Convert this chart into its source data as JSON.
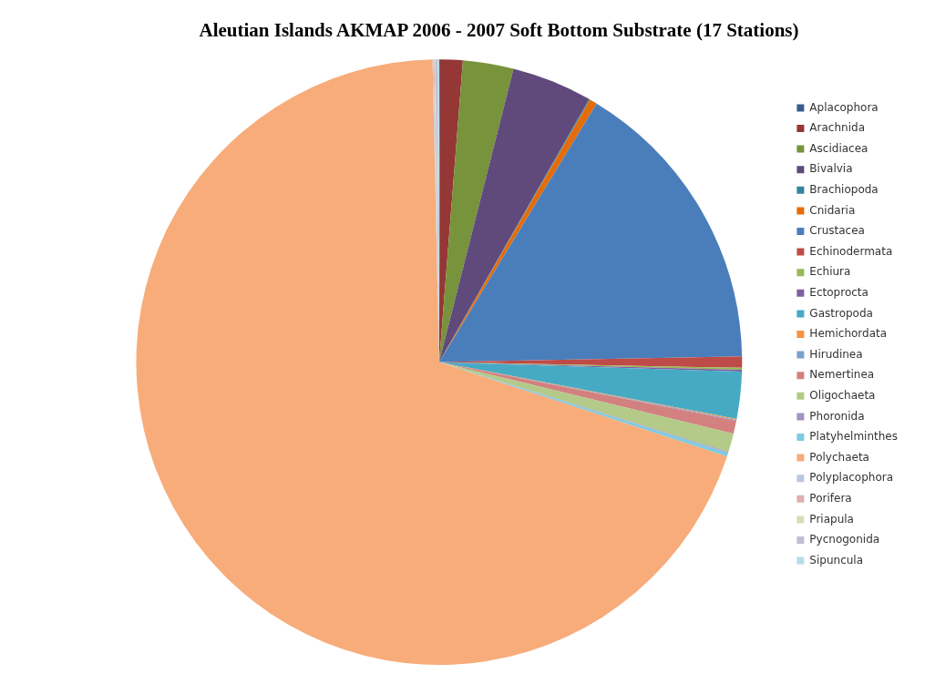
{
  "chart_data": {
    "type": "pie",
    "title": "Aleutian Islands AKMAP 2006 - 2007 Soft Bottom Substrate (17 Stations)",
    "categories": [
      "Aplacophora",
      "Arachnida",
      "Ascidiacea",
      "Bivalvia",
      "Brachiopoda",
      "Cnidaria",
      "Crustacea",
      "Echinodermata",
      "Echiura",
      "Ectoprocta",
      "Gastropoda",
      "Hemichordata",
      "Hirudinea",
      "Nemertinea",
      "Oligochaeta",
      "Phoronida",
      "Platyhelminthes",
      "Polychaeta",
      "Polyplacophora",
      "Porifera",
      "Priapula",
      "Pycnogonida",
      "Sipuncula"
    ],
    "values": [
      0.05,
      1.2,
      2.7,
      4.3,
      0.05,
      0.4,
      16.0,
      0.6,
      0.1,
      0.1,
      2.5,
      0.05,
      0.05,
      0.7,
      1.0,
      0.05,
      0.2,
      69.6,
      0.05,
      0.05,
      0.05,
      0.1,
      0.1
    ],
    "colors": [
      "#385d8a",
      "#953735",
      "#77933c",
      "#604a7b",
      "#31859c",
      "#e46c0a",
      "#4a7ebb",
      "#be4b48",
      "#98b954",
      "#7d60a0",
      "#46aac5",
      "#f69240",
      "#7c9fd0",
      "#d38180",
      "#b3ca88",
      "#a592c0",
      "#7ecbe0",
      "#f7ac7a",
      "#b9c7e0",
      "#dfb0af",
      "#d1e0b8",
      "#c4bbd4",
      "#b6dde8"
    ],
    "legend": "right"
  }
}
